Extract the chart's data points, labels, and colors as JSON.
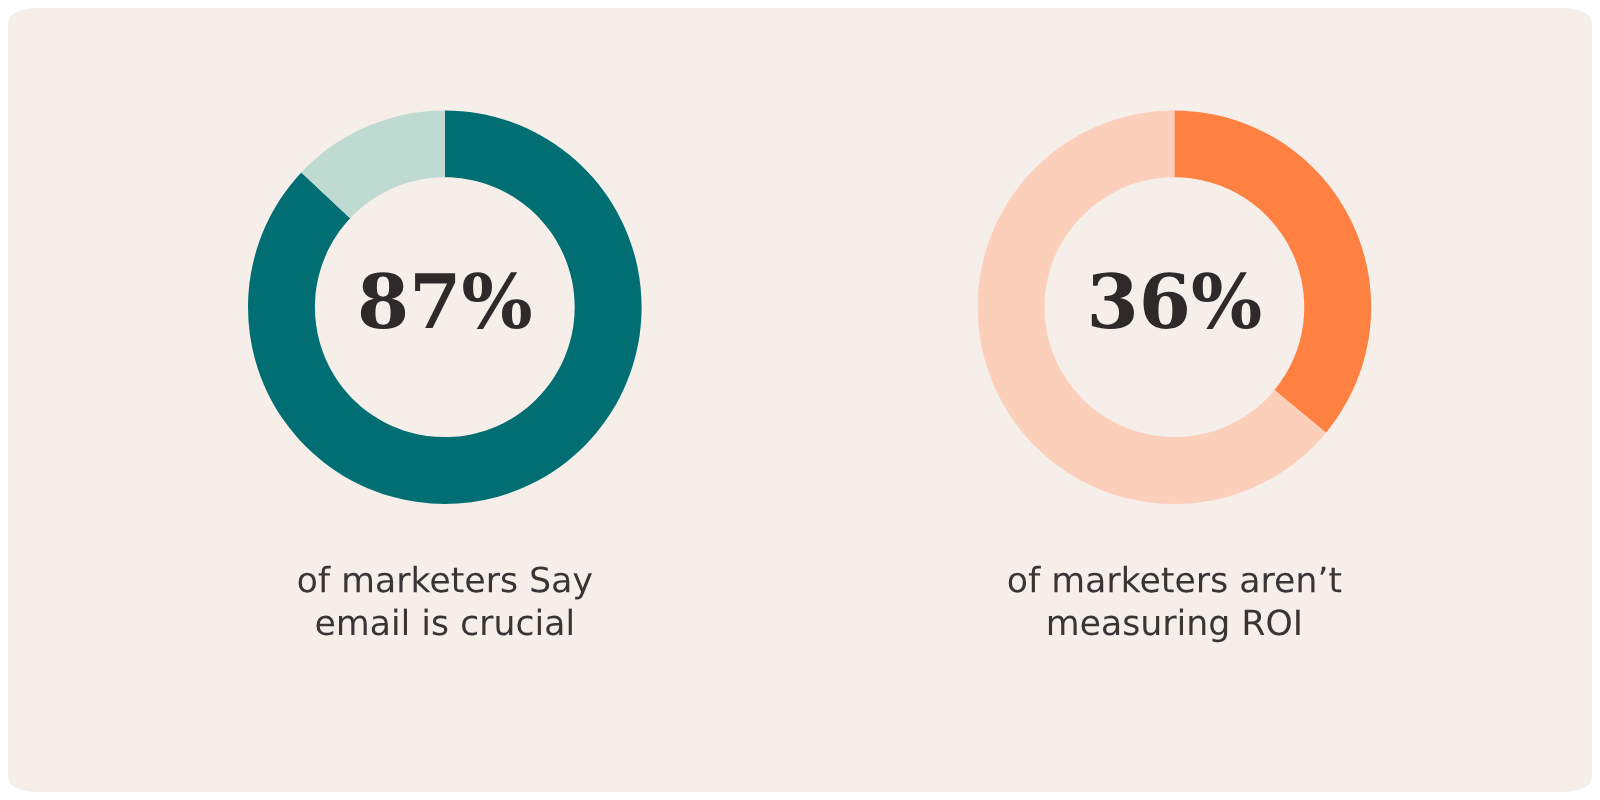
{
  "chart_data": [
    {
      "type": "donut",
      "categories": [
        null,
        null
      ],
      "values": [
        87,
        13
      ],
      "colors": [
        "#006e73",
        "#bfdbd1"
      ],
      "value_labels": [
        "87%",
        null
      ],
      "annotations": [
        "of marketers Say\nemail is crucial"
      ]
    },
    {
      "type": "donut",
      "categories": [
        null,
        null
      ],
      "values": [
        36,
        64
      ],
      "colors": [
        "#ff8142",
        "#fccfbb"
      ],
      "value_labels": [
        "36%",
        null
      ],
      "annotations": [
        "of marketers aren’t\nmeasuring ROI"
      ]
    }
  ]
}
